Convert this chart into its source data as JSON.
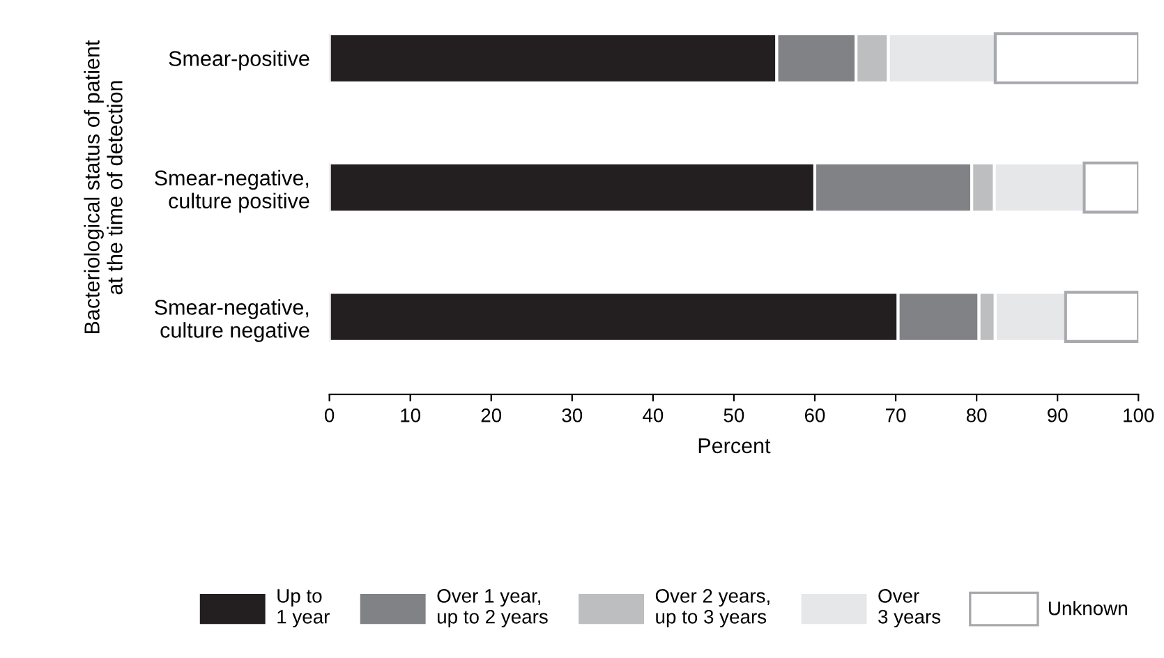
{
  "chart_data": {
    "type": "bar",
    "orientation": "horizontal",
    "stacked": true,
    "xlabel": "Percent",
    "ylabel": "Bacteriological status of patient\nat the time of detection",
    "categories": [
      "Smear-positive",
      "Smear-negative,\nculture positive",
      "Smear-negative,\nculture negative"
    ],
    "series": [
      {
        "name": "Up to\n1 year",
        "color": "#231f20",
        "values": [
          55.3,
          60.0,
          70.3
        ]
      },
      {
        "name": "Over 1 year,\nup to 2 years",
        "color": "#808285",
        "values": [
          9.8,
          19.4,
          10.0
        ]
      },
      {
        "name": "Over 2 years,\nup to 3 years",
        "color": "#bcbec0",
        "values": [
          4.0,
          2.8,
          2.0
        ]
      },
      {
        "name": "Over\n3 years",
        "color": "#e6e7e8",
        "values": [
          13.2,
          11.1,
          8.7
        ]
      },
      {
        "name": "Unknown",
        "color": "#ffffff",
        "values": [
          17.7,
          6.7,
          9.0
        ]
      }
    ],
    "xlim": [
      0,
      100
    ],
    "xticks": [
      0,
      10,
      20,
      30,
      40,
      50,
      60,
      70,
      80,
      90,
      100
    ],
    "grid": false,
    "legend": "bottom"
  }
}
